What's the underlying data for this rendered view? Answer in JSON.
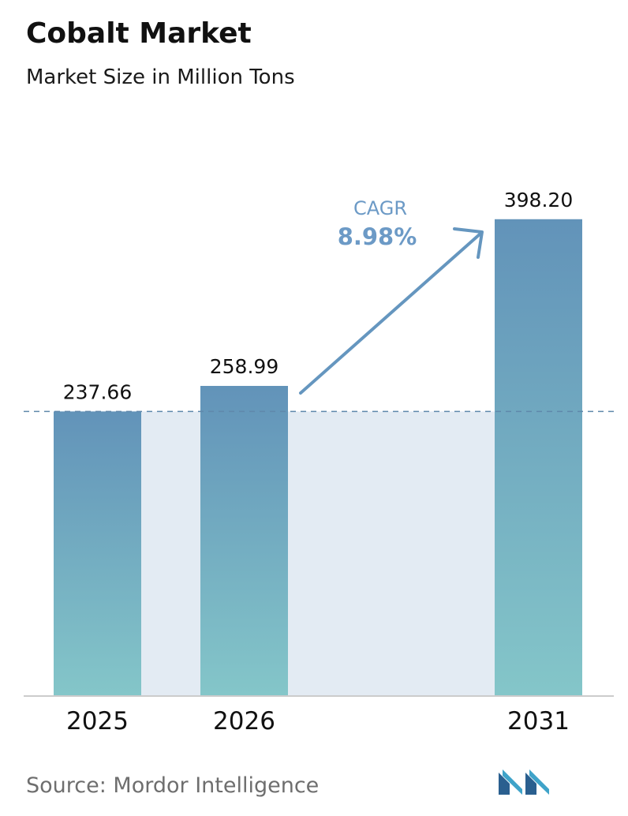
{
  "chart_data": {
    "type": "bar",
    "title": "Cobalt Market",
    "subtitle": "Market Size in Million Tons",
    "categories": [
      "2025",
      "2026",
      "2031"
    ],
    "values": [
      237.66,
      258.99,
      398.2
    ],
    "value_labels": [
      "237.66",
      "258.99",
      "398.20"
    ],
    "xlabel": "",
    "ylabel": "",
    "grid": false,
    "annotation": {
      "label": "CAGR",
      "value": "8.98%"
    }
  },
  "source": "Source:  Mordor Intelligence",
  "logo_icon": "mordor-intelligence-logo",
  "colors": {
    "bar_top": "#6293b9",
    "bar_bottom": "#84c6c9",
    "band": "#e3ebf3",
    "reference_line": "#5f88ab",
    "arrow": "#6596bf",
    "cagr_text": "#6c9ac6",
    "axis": "#cccccc"
  }
}
